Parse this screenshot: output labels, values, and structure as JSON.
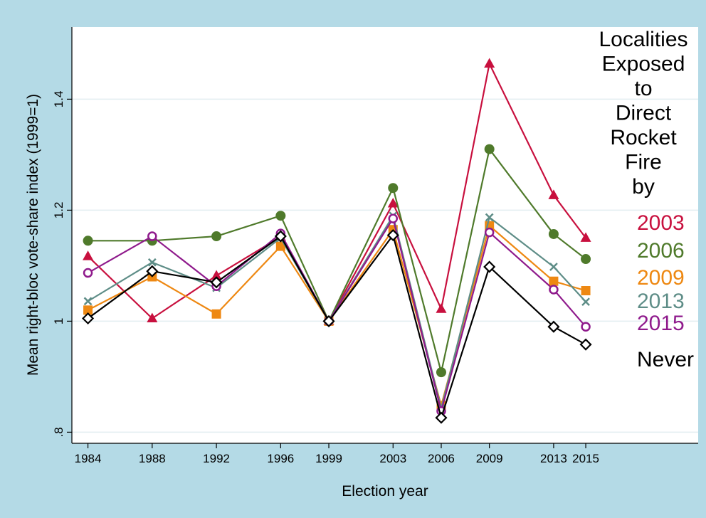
{
  "colors": {
    "background": "#b4dae6",
    "plot_area": "#ffffff",
    "gridline": "#e3eef1"
  },
  "chart_data": {
    "type": "line",
    "title": "",
    "xlabel": "Election year",
    "ylabel": "Mean right-bloc vote-share index (1999=1)",
    "x": [
      1984,
      1988,
      1992,
      1996,
      1999,
      2003,
      2006,
      2009,
      2013,
      2015
    ],
    "x_tick_labels": [
      "1984",
      "1988",
      "1992",
      "1996",
      "1999",
      "2003",
      "2006",
      "2009",
      "2013",
      "2015"
    ],
    "xlim": [
      1983,
      2022
    ],
    "ylim": [
      0.78,
      1.53
    ],
    "y_ticks": [
      0.8,
      1.0,
      1.2,
      1.4
    ],
    "y_tick_labels": [
      ".8",
      "1",
      "1.2",
      "1.4"
    ],
    "grid": true,
    "legend_heading": [
      "Localities",
      "Exposed",
      "to",
      "Direct",
      "Rocket",
      "Fire",
      "by"
    ],
    "legend_placement": "right, labels at line ends",
    "series": [
      {
        "name": "2003",
        "color": "#c8103e",
        "marker": "triangle",
        "values": [
          1.117,
          1.005,
          1.082,
          1.152,
          1.0,
          1.212,
          1.022,
          1.464,
          1.227,
          1.15
        ]
      },
      {
        "name": "2006",
        "color": "#4f7a2b",
        "marker": "circle",
        "values": [
          1.145,
          1.145,
          1.153,
          1.19,
          1.0,
          1.24,
          0.908,
          1.31,
          1.157,
          1.112
        ]
      },
      {
        "name": "2009",
        "color": "#ee8812",
        "marker": "square",
        "values": [
          1.02,
          1.08,
          1.013,
          1.135,
          1.0,
          1.165,
          0.848,
          1.172,
          1.072,
          1.055
        ]
      },
      {
        "name": "2013",
        "color": "#5e8d87",
        "marker": "x",
        "values": [
          1.036,
          1.106,
          1.06,
          1.15,
          1.0,
          1.19,
          0.843,
          1.187,
          1.098,
          1.035
        ]
      },
      {
        "name": "2015",
        "color": "#8f1a8c",
        "marker": "hollow-circle",
        "values": [
          1.087,
          1.153,
          1.063,
          1.158,
          1.0,
          1.185,
          0.838,
          1.16,
          1.057,
          0.99
        ]
      },
      {
        "name": "Never",
        "color": "#000000",
        "marker": "hollow-diamond",
        "values": [
          1.005,
          1.09,
          1.07,
          1.153,
          1.0,
          1.155,
          0.826,
          1.098,
          0.99,
          0.958
        ]
      }
    ]
  }
}
